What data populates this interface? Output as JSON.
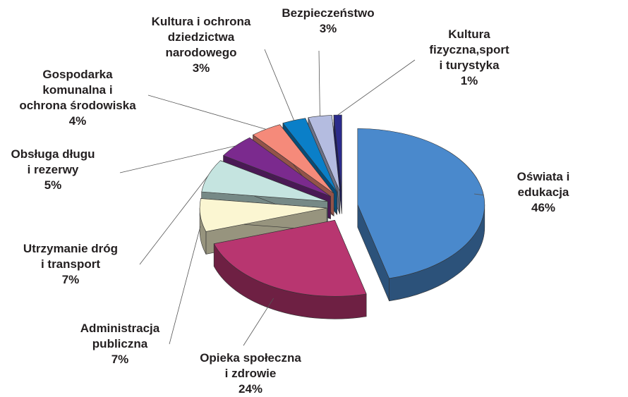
{
  "chart_data": {
    "type": "pie",
    "categories": [
      "Oświata i edukacja",
      "Opieka społeczna\ni zdrowie",
      "Administracja\npubliczna",
      "Utrzymanie dróg\ni transport",
      "Obsługa długu\ni rezerwy",
      "Gospodarka\nkomunalna i\nochrona środowiska",
      "Kultura i ochrona\ndziedzictwa\nnarodowego",
      "Bezpieczeństwo",
      "Kultura\nfizyczna,sport\ni turystyka"
    ],
    "values": [
      46,
      24,
      7,
      7,
      5,
      4,
      3,
      3,
      1
    ],
    "value_labels": [
      "46%",
      "24%",
      "7%",
      "7%",
      "5%",
      "4%",
      "3%",
      "3%",
      "1%"
    ],
    "colors": [
      "#4a89cc",
      "#b83670",
      "#fbf6d2",
      "#c5e4e0",
      "#7b2a8e",
      "#f58a7a",
      "#0a7fc8",
      "#b4bce0",
      "#2b2b8c"
    ]
  }
}
